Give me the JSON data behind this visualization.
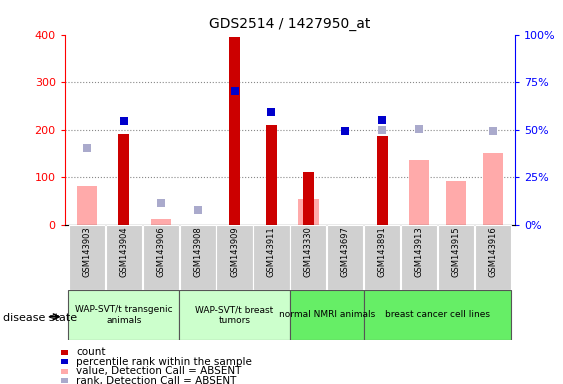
{
  "title": "GDS2514 / 1427950_at",
  "samples": [
    "GSM143903",
    "GSM143904",
    "GSM143906",
    "GSM143908",
    "GSM143909",
    "GSM143911",
    "GSM143330",
    "GSM143697",
    "GSM143891",
    "GSM143913",
    "GSM143915",
    "GSM143916"
  ],
  "count": [
    null,
    190,
    null,
    null,
    395,
    210,
    110,
    null,
    187,
    null,
    null,
    null
  ],
  "percentile_rank": [
    null,
    218,
    null,
    null,
    282,
    238,
    null,
    198,
    220,
    null,
    null,
    null
  ],
  "value_absent": [
    82,
    null,
    12,
    null,
    null,
    null,
    55,
    null,
    null,
    135,
    92,
    150
  ],
  "rank_absent": [
    162,
    null,
    46,
    30,
    null,
    null,
    null,
    null,
    200,
    202,
    null,
    198
  ],
  "groups": [
    {
      "label": "WAP-SVT/t transgenic\nanimals",
      "start": 0,
      "end": 3
    },
    {
      "label": "WAP-SVT/t breast\ntumors",
      "start": 3,
      "end": 6
    },
    {
      "label": "normal NMRI animals",
      "start": 6,
      "end": 8
    },
    {
      "label": "breast cancer cell lines",
      "start": 8,
      "end": 12
    }
  ],
  "group_colors": [
    "#ccffcc",
    "#ccffcc",
    "#66ee66",
    "#66ee66"
  ],
  "ylim_left": [
    0,
    400
  ],
  "ylim_right": [
    0,
    100
  ],
  "yticks_left": [
    0,
    100,
    200,
    300,
    400
  ],
  "yticks_right": [
    0,
    25,
    50,
    75,
    100
  ],
  "ytick_labels_right": [
    "0%",
    "25%",
    "50%",
    "75%",
    "100%"
  ],
  "count_color": "#cc0000",
  "percentile_color": "#0000cc",
  "value_absent_color": "#ffaaaa",
  "rank_absent_color": "#aaaacc",
  "grid_color": "#888888",
  "legend_items": [
    {
      "color": "#cc0000",
      "label": "count"
    },
    {
      "color": "#0000cc",
      "label": "percentile rank within the sample"
    },
    {
      "color": "#ffaaaa",
      "label": "value, Detection Call = ABSENT"
    },
    {
      "color": "#aaaacc",
      "label": "rank, Detection Call = ABSENT"
    }
  ]
}
